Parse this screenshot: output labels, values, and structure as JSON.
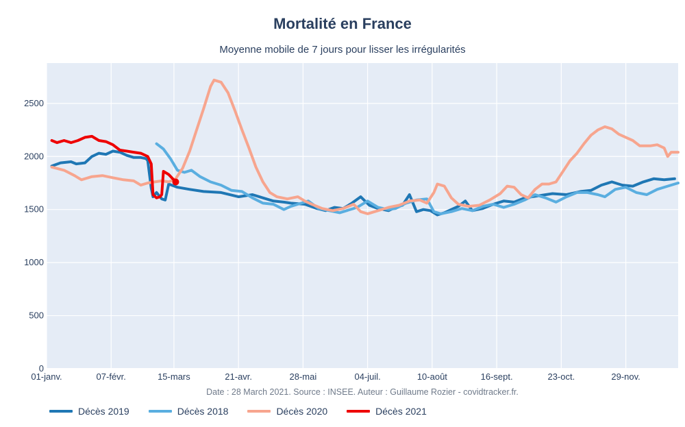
{
  "chart_data": {
    "type": "line",
    "title": "Mortalité en France",
    "subtitle": "Moyenne mobile de 7 jours pour lisser les irrégularités",
    "caption": "Date : 28 March 2021. Source : INSEE. Auteur : Guillaume Rozier - covidtracker.fr.",
    "x_ticks": [
      {
        "day": 0,
        "label": "01-janv."
      },
      {
        "day": 37,
        "label": "07-févr."
      },
      {
        "day": 73,
        "label": "15-mars"
      },
      {
        "day": 110,
        "label": "21-avr."
      },
      {
        "day": 147,
        "label": "28-mai"
      },
      {
        "day": 184,
        "label": "04-juil."
      },
      {
        "day": 221,
        "label": "10-août"
      },
      {
        "day": 258,
        "label": "16-sept."
      },
      {
        "day": 295,
        "label": "23-oct."
      },
      {
        "day": 332,
        "label": "29-nov."
      }
    ],
    "y_ticks": [
      0,
      500,
      1000,
      1500,
      2000,
      2500
    ],
    "xlim": [
      0,
      362
    ],
    "ylim": [
      0,
      2880
    ],
    "series": [
      {
        "name": "Décès 2019",
        "color": "#1f77b4",
        "points": [
          [
            3,
            1910
          ],
          [
            8,
            1940
          ],
          [
            14,
            1950
          ],
          [
            17,
            1930
          ],
          [
            22,
            1940
          ],
          [
            26,
            2000
          ],
          [
            30,
            2030
          ],
          [
            34,
            2020
          ],
          [
            38,
            2050
          ],
          [
            42,
            2040
          ],
          [
            46,
            2010
          ],
          [
            50,
            1990
          ],
          [
            54,
            1990
          ],
          [
            57,
            1980
          ],
          [
            58,
            1960
          ],
          [
            60,
            1700
          ],
          [
            61,
            1620
          ],
          [
            63,
            1660
          ],
          [
            66,
            1600
          ],
          [
            68,
            1590
          ],
          [
            70,
            1740
          ],
          [
            75,
            1710
          ],
          [
            82,
            1690
          ],
          [
            90,
            1670
          ],
          [
            100,
            1660
          ],
          [
            110,
            1620
          ],
          [
            118,
            1640
          ],
          [
            124,
            1610
          ],
          [
            130,
            1580
          ],
          [
            136,
            1570
          ],
          [
            140,
            1560
          ],
          [
            148,
            1550
          ],
          [
            155,
            1510
          ],
          [
            160,
            1490
          ],
          [
            165,
            1520
          ],
          [
            170,
            1510
          ],
          [
            175,
            1560
          ],
          [
            180,
            1620
          ],
          [
            185,
            1540
          ],
          [
            190,
            1510
          ],
          [
            196,
            1490
          ],
          [
            200,
            1520
          ],
          [
            204,
            1540
          ],
          [
            208,
            1640
          ],
          [
            212,
            1480
          ],
          [
            216,
            1500
          ],
          [
            220,
            1490
          ],
          [
            224,
            1450
          ],
          [
            228,
            1470
          ],
          [
            232,
            1500
          ],
          [
            236,
            1530
          ],
          [
            240,
            1580
          ],
          [
            244,
            1490
          ],
          [
            250,
            1510
          ],
          [
            256,
            1550
          ],
          [
            262,
            1580
          ],
          [
            268,
            1570
          ],
          [
            274,
            1610
          ],
          [
            282,
            1630
          ],
          [
            290,
            1650
          ],
          [
            298,
            1640
          ],
          [
            306,
            1670
          ],
          [
            312,
            1680
          ],
          [
            318,
            1730
          ],
          [
            324,
            1760
          ],
          [
            330,
            1730
          ],
          [
            336,
            1720
          ],
          [
            342,
            1760
          ],
          [
            348,
            1790
          ],
          [
            354,
            1780
          ],
          [
            360,
            1790
          ]
        ]
      },
      {
        "name": "Décès 2018",
        "color": "#5aaee0",
        "points": [
          [
            63,
            2120
          ],
          [
            67,
            2070
          ],
          [
            71,
            1980
          ],
          [
            75,
            1870
          ],
          [
            79,
            1850
          ],
          [
            83,
            1870
          ],
          [
            88,
            1810
          ],
          [
            94,
            1760
          ],
          [
            100,
            1730
          ],
          [
            106,
            1680
          ],
          [
            112,
            1670
          ],
          [
            118,
            1610
          ],
          [
            124,
            1560
          ],
          [
            130,
            1550
          ],
          [
            136,
            1500
          ],
          [
            140,
            1530
          ],
          [
            146,
            1560
          ],
          [
            150,
            1580
          ],
          [
            156,
            1510
          ],
          [
            162,
            1490
          ],
          [
            168,
            1470
          ],
          [
            172,
            1490
          ],
          [
            178,
            1520
          ],
          [
            184,
            1580
          ],
          [
            190,
            1520
          ],
          [
            196,
            1500
          ],
          [
            200,
            1510
          ],
          [
            206,
            1560
          ],
          [
            212,
            1590
          ],
          [
            218,
            1600
          ],
          [
            222,
            1480
          ],
          [
            226,
            1460
          ],
          [
            232,
            1480
          ],
          [
            238,
            1510
          ],
          [
            244,
            1490
          ],
          [
            250,
            1530
          ],
          [
            256,
            1550
          ],
          [
            262,
            1520
          ],
          [
            268,
            1550
          ],
          [
            274,
            1590
          ],
          [
            280,
            1640
          ],
          [
            286,
            1610
          ],
          [
            292,
            1570
          ],
          [
            298,
            1620
          ],
          [
            304,
            1660
          ],
          [
            310,
            1660
          ],
          [
            316,
            1640
          ],
          [
            320,
            1620
          ],
          [
            326,
            1690
          ],
          [
            332,
            1710
          ],
          [
            338,
            1660
          ],
          [
            344,
            1640
          ],
          [
            350,
            1690
          ],
          [
            356,
            1720
          ],
          [
            362,
            1750
          ]
        ]
      },
      {
        "name": "Décès 2020",
        "color": "#f7a58e",
        "points": [
          [
            3,
            1900
          ],
          [
            10,
            1870
          ],
          [
            16,
            1820
          ],
          [
            20,
            1780
          ],
          [
            26,
            1810
          ],
          [
            32,
            1820
          ],
          [
            38,
            1800
          ],
          [
            44,
            1780
          ],
          [
            50,
            1770
          ],
          [
            54,
            1730
          ],
          [
            58,
            1750
          ],
          [
            62,
            1760
          ],
          [
            66,
            1770
          ],
          [
            70,
            1760
          ],
          [
            74,
            1790
          ],
          [
            78,
            1890
          ],
          [
            82,
            2050
          ],
          [
            86,
            2250
          ],
          [
            90,
            2450
          ],
          [
            94,
            2660
          ],
          [
            96,
            2720
          ],
          [
            100,
            2700
          ],
          [
            104,
            2600
          ],
          [
            108,
            2430
          ],
          [
            112,
            2250
          ],
          [
            116,
            2080
          ],
          [
            120,
            1900
          ],
          [
            124,
            1760
          ],
          [
            128,
            1660
          ],
          [
            132,
            1620
          ],
          [
            138,
            1600
          ],
          [
            144,
            1620
          ],
          [
            148,
            1580
          ],
          [
            152,
            1550
          ],
          [
            158,
            1510
          ],
          [
            164,
            1490
          ],
          [
            170,
            1510
          ],
          [
            176,
            1550
          ],
          [
            180,
            1480
          ],
          [
            184,
            1460
          ],
          [
            190,
            1490
          ],
          [
            196,
            1520
          ],
          [
            202,
            1540
          ],
          [
            208,
            1580
          ],
          [
            214,
            1590
          ],
          [
            218,
            1560
          ],
          [
            222,
            1660
          ],
          [
            224,
            1740
          ],
          [
            228,
            1720
          ],
          [
            232,
            1610
          ],
          [
            236,
            1550
          ],
          [
            242,
            1530
          ],
          [
            248,
            1540
          ],
          [
            254,
            1590
          ],
          [
            260,
            1650
          ],
          [
            264,
            1720
          ],
          [
            268,
            1710
          ],
          [
            272,
            1640
          ],
          [
            276,
            1610
          ],
          [
            280,
            1690
          ],
          [
            284,
            1740
          ],
          [
            288,
            1740
          ],
          [
            292,
            1760
          ],
          [
            296,
            1860
          ],
          [
            300,
            1960
          ],
          [
            304,
            2030
          ],
          [
            308,
            2120
          ],
          [
            312,
            2200
          ],
          [
            316,
            2250
          ],
          [
            320,
            2280
          ],
          [
            324,
            2260
          ],
          [
            328,
            2210
          ],
          [
            332,
            2180
          ],
          [
            336,
            2150
          ],
          [
            340,
            2100
          ],
          [
            346,
            2100
          ],
          [
            350,
            2110
          ],
          [
            354,
            2080
          ],
          [
            356,
            2000
          ],
          [
            358,
            2040
          ],
          [
            362,
            2040
          ]
        ]
      },
      {
        "name": "Décès 2021",
        "color": "#ee0000",
        "points": [
          [
            3,
            2150
          ],
          [
            6,
            2130
          ],
          [
            10,
            2150
          ],
          [
            14,
            2130
          ],
          [
            18,
            2150
          ],
          [
            22,
            2180
          ],
          [
            26,
            2190
          ],
          [
            30,
            2150
          ],
          [
            34,
            2140
          ],
          [
            38,
            2110
          ],
          [
            42,
            2060
          ],
          [
            46,
            2050
          ],
          [
            50,
            2040
          ],
          [
            54,
            2030
          ],
          [
            58,
            2000
          ],
          [
            60,
            1930
          ],
          [
            61,
            1640
          ],
          [
            63,
            1610
          ],
          [
            65,
            1620
          ],
          [
            66,
            1640
          ],
          [
            67,
            1860
          ],
          [
            70,
            1830
          ],
          [
            74,
            1760
          ]
        ]
      }
    ]
  }
}
